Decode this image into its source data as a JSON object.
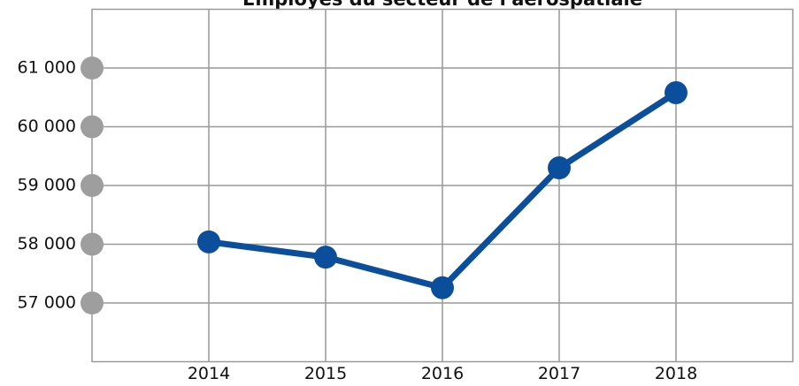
{
  "chart_data": {
    "type": "line",
    "title": "Employés du secteur de l'aérospatiale",
    "x": [
      2014,
      2015,
      2016,
      2017,
      2018
    ],
    "series": [
      {
        "color": "#0b4f9c",
        "values": [
          58040,
          57780,
          57260,
          59300,
          60580
        ]
      }
    ],
    "xlim": [
      2013,
      2019
    ],
    "xticks": [
      2014,
      2015,
      2016,
      2017,
      2018
    ],
    "ylim": [
      56000,
      62000
    ],
    "yticks": [
      {
        "value": 57000,
        "label": "57 000"
      },
      {
        "value": 58000,
        "label": "58 000"
      },
      {
        "value": 59000,
        "label": "59 000"
      },
      {
        "value": 60000,
        "label": "60 000"
      },
      {
        "value": 61000,
        "label": "61 000"
      }
    ],
    "grid": true
  }
}
